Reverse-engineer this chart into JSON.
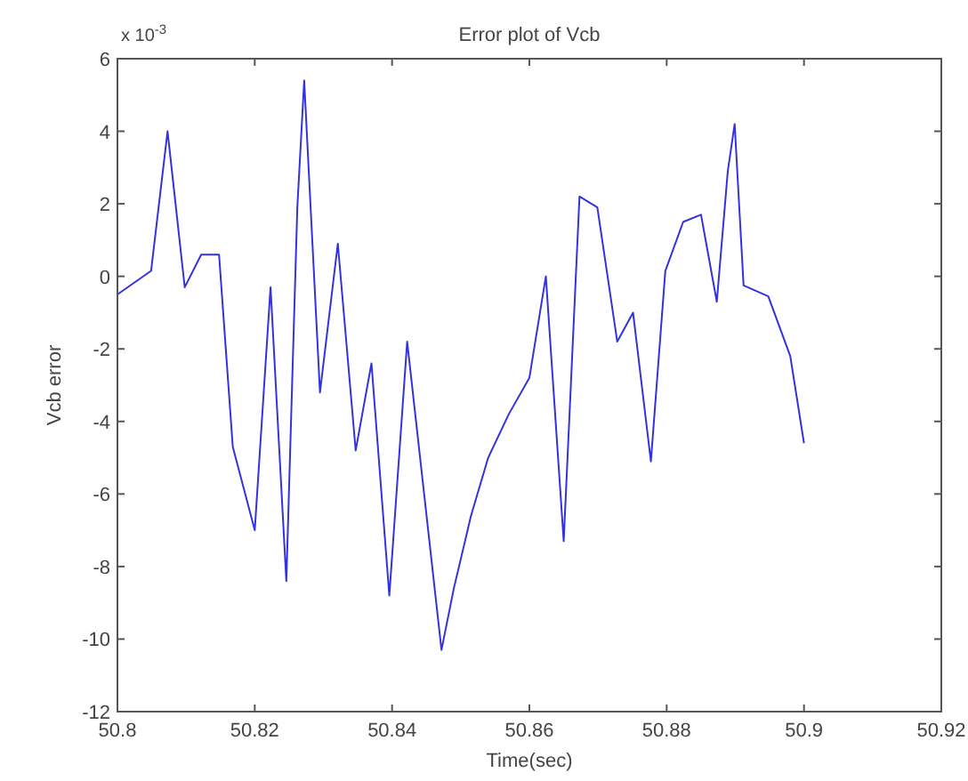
{
  "chart_data": {
    "type": "line",
    "title": "Error plot of Vcb",
    "xlabel": "Time(sec)",
    "ylabel": "Vcb error",
    "annotations": [
      "x 10$^{-3}$"
    ],
    "xlim": [
      50.8,
      50.92
    ],
    "xticks": [
      50.8,
      50.82,
      50.84,
      50.86,
      50.88,
      50.9,
      50.92
    ],
    "ylim": [
      -12,
      6
    ],
    "yticks": [
      -12,
      -10,
      -8,
      -6,
      -4,
      -2,
      0,
      2,
      4,
      6
    ],
    "grid": false,
    "marker": "none",
    "line_style": "solid",
    "series": [
      {
        "color": "#3333dd",
        "x": [
          50.8,
          50.8049,
          50.8073,
          50.8098,
          50.8122,
          50.8148,
          50.8168,
          50.82,
          50.8223,
          50.8246,
          50.8262,
          50.8272,
          50.8295,
          50.8321,
          50.8347,
          50.837,
          50.8396,
          50.8422,
          50.8472,
          50.849,
          50.8515,
          50.854,
          50.857,
          50.86,
          50.8624,
          50.865,
          50.8673,
          50.8699,
          50.8728,
          50.8751,
          50.8777,
          50.8798,
          50.8824,
          50.885,
          50.8873,
          50.8889,
          50.8899,
          50.8912,
          50.8948,
          50.898,
          50.9
        ],
        "values": [
          -0.5,
          0.15,
          4.0,
          -0.3,
          0.6,
          0.6,
          -4.7,
          -7.0,
          -0.3,
          -8.4,
          1.9,
          5.4,
          -3.2,
          0.9,
          -4.8,
          -2.4,
          -8.8,
          -1.8,
          -10.3,
          -8.6,
          -6.6,
          -5.0,
          -3.8,
          -2.8,
          0.0,
          -7.3,
          2.2,
          1.9,
          -1.8,
          -1.0,
          -5.1,
          0.15,
          1.5,
          1.7,
          -0.7,
          2.9,
          4.2,
          -0.25,
          -0.55,
          -2.2,
          -4.6
        ]
      }
    ]
  }
}
